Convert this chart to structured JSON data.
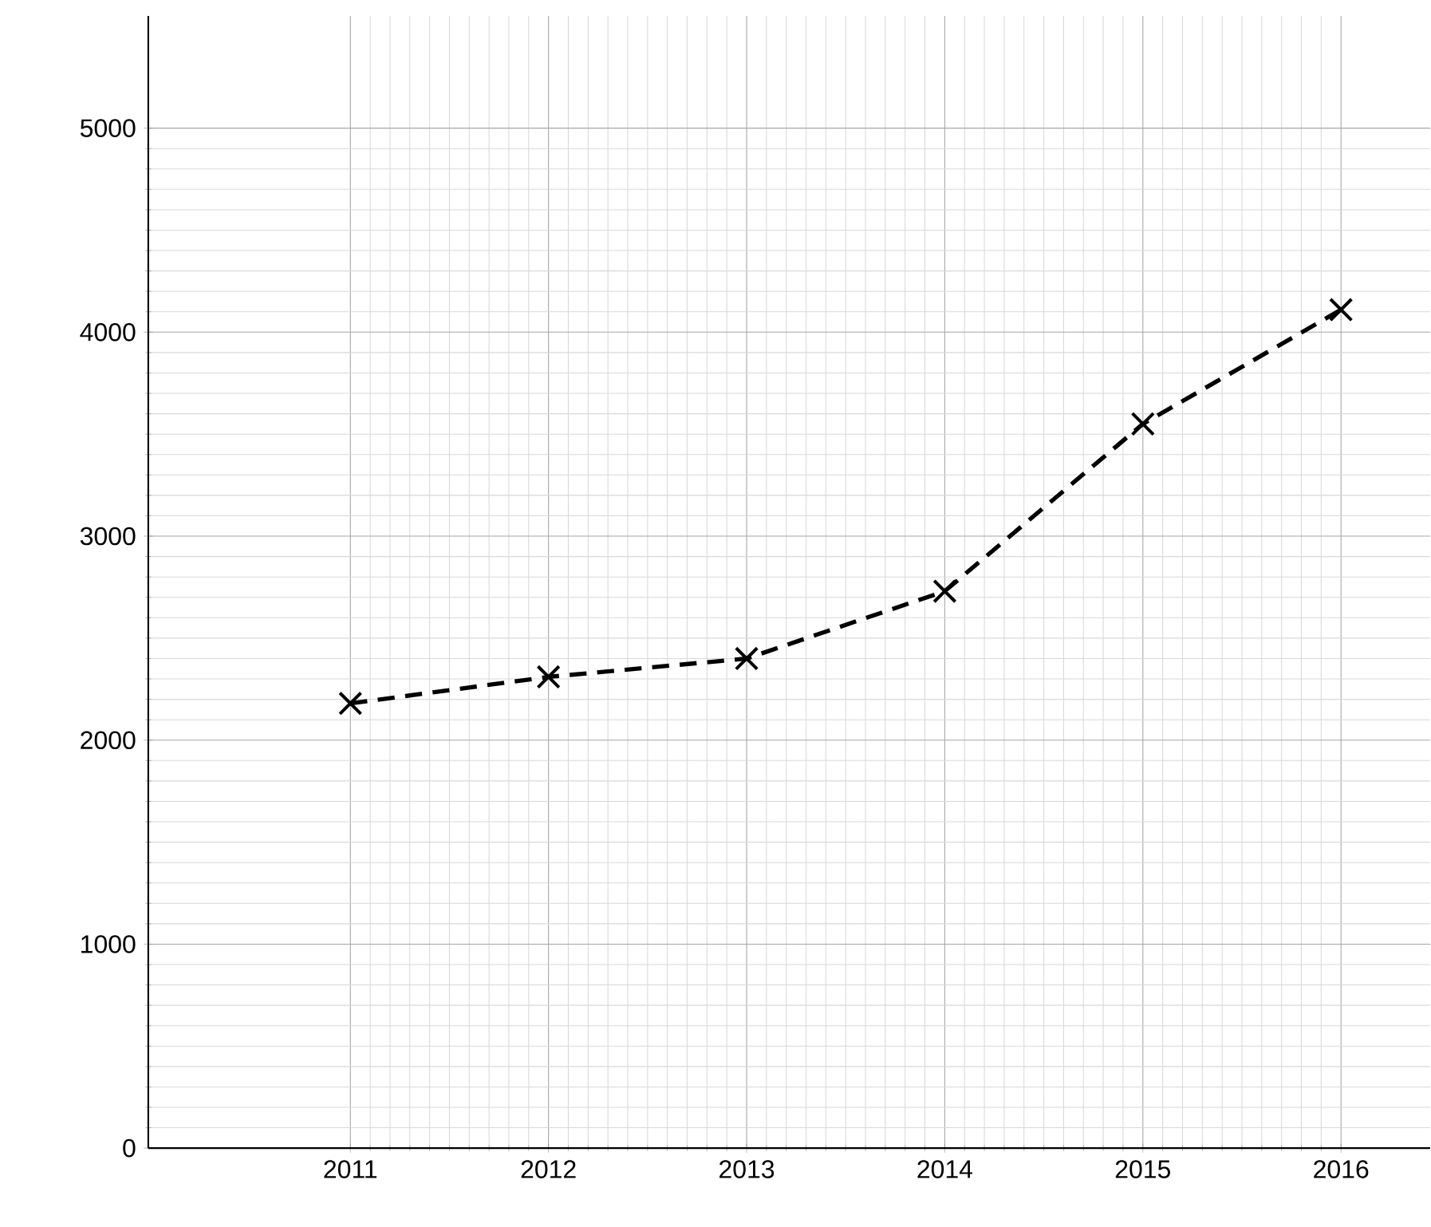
{
  "chart_data": {
    "type": "line",
    "categories": [
      "2011",
      "2012",
      "2013",
      "2014",
      "2015",
      "2016"
    ],
    "series": [
      {
        "color": "#000000",
        "values": [
          2180,
          2310,
          2400,
          2730,
          3550,
          4110
        ]
      }
    ],
    "ylim": [
      0,
      5550
    ],
    "yticks": [
      0,
      1000,
      2000,
      3000,
      4000,
      5000
    ],
    "grid": true,
    "marker": "cross",
    "line_style": "dashed"
  }
}
